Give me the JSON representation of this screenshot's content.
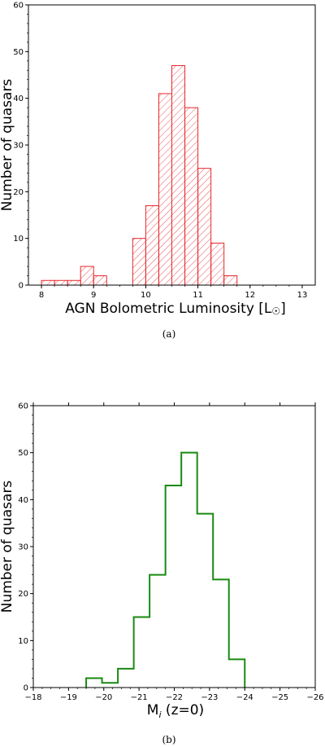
{
  "colors": {
    "hist_a": "#e8262b",
    "hist_b": "#1a8a12",
    "axis": "#000000"
  },
  "chart_data": [
    {
      "type": "bar",
      "subtype": "histogram",
      "style": "hatched",
      "bins": [
        [
          8.0,
          8.25
        ],
        [
          8.25,
          8.5
        ],
        [
          8.5,
          8.75
        ],
        [
          8.75,
          9.0
        ],
        [
          9.0,
          9.25
        ],
        [
          9.25,
          9.5
        ],
        [
          9.5,
          9.75
        ],
        [
          9.75,
          10.0
        ],
        [
          10.0,
          10.25
        ],
        [
          10.25,
          10.5
        ],
        [
          10.5,
          10.75
        ],
        [
          10.75,
          11.0
        ],
        [
          11.0,
          11.25
        ],
        [
          11.25,
          11.5
        ],
        [
          11.5,
          11.75
        ],
        [
          11.75,
          12.0
        ],
        [
          12.0,
          12.25
        ],
        [
          12.25,
          12.5
        ],
        [
          12.5,
          12.75
        ],
        [
          12.75,
          13.0
        ]
      ],
      "values": [
        1,
        1,
        1,
        4,
        2,
        0,
        0,
        10,
        17,
        41,
        47,
        38,
        25,
        9,
        2,
        0,
        0,
        0,
        0,
        0
      ],
      "xlabel": "AGN Bolometric Luminosity [L",
      "xlabel_sym": "☉",
      "xlabel_end": "]",
      "ylabel": "Number of quasars",
      "xlim": [
        7.75,
        13.25
      ],
      "ylim": [
        0,
        60
      ],
      "xticks": [
        "8",
        "9",
        "10",
        "11",
        "12",
        "13"
      ],
      "yticks": [
        "0",
        "10",
        "20",
        "30",
        "40",
        "50",
        "60"
      ],
      "caption": "(a)"
    },
    {
      "type": "line",
      "subtype": "step-histogram",
      "bins": [
        [
          -19.5,
          -19.95
        ],
        [
          -19.95,
          -20.4
        ],
        [
          -20.4,
          -20.85
        ],
        [
          -20.85,
          -21.3
        ],
        [
          -21.3,
          -21.75
        ],
        [
          -21.75,
          -22.2
        ],
        [
          -22.2,
          -22.65
        ],
        [
          -22.65,
          -23.1
        ],
        [
          -23.1,
          -23.55
        ],
        [
          -23.55,
          -24.0
        ]
      ],
      "values": [
        2,
        1,
        4,
        15,
        24,
        43,
        50,
        37,
        23,
        6
      ],
      "xlabel": "M",
      "xlabel_sub": "i",
      "xlabel_end": " (z=0)",
      "ylabel": "Number of quasars",
      "xlim": [
        -18,
        -26
      ],
      "ylim": [
        0,
        60
      ],
      "xticks": [
        "−18",
        "−19",
        "−20",
        "−21",
        "−22",
        "−23",
        "−24",
        "−25",
        "−26"
      ],
      "yticks": [
        "0",
        "10",
        "20",
        "30",
        "40",
        "50",
        "60"
      ],
      "caption": "(b)"
    }
  ]
}
